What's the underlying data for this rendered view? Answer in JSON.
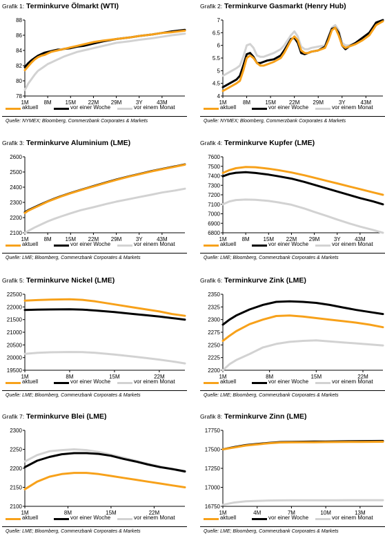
{
  "legend_labels": [
    "aktuell",
    "vor einer Woche",
    "vor einem Monat"
  ],
  "series_colors": {
    "aktuell": "#f7a11a",
    "vor einer Woche": "#000000",
    "vor einem Monat": "#d2d2d2"
  },
  "source_nymex": "Quelle: NYMEX; Bloomberg, Commerzbank Corporates & Markets",
  "source_lme": "Quelle: LME; Bloomberg, Commerzbank Corporates & Markets",
  "charts": [
    {
      "prefix": "Grafik 1:",
      "title": "Terminkurve Ölmarkt (WTI)",
      "chart_data": {
        "type": "line",
        "x": [
          1,
          2,
          3,
          4,
          5,
          6,
          7,
          8,
          9,
          10,
          11,
          12,
          13,
          15,
          17,
          19,
          21,
          22,
          25,
          29,
          33,
          36,
          40,
          43,
          46,
          50
        ],
        "xticks": [
          1,
          8,
          15,
          22,
          29,
          36,
          43
        ],
        "xticklabels": [
          "1M",
          "8M",
          "15M",
          "22M",
          "29M",
          "3Y",
          "43M"
        ],
        "xlim": [
          1,
          50
        ],
        "ylim": [
          78,
          88
        ],
        "yticks": [
          78,
          80,
          82,
          84,
          86,
          88
        ],
        "series": [
          {
            "name": "aktuell",
            "values": [
              81.4,
              81.9,
              82.4,
              82.8,
              83.1,
              83.3,
              83.4,
              83.6,
              83.8,
              83.9,
              84.0,
              84.1,
              84.2,
              84.4,
              84.6,
              84.8,
              85.0,
              85.1,
              85.3,
              85.5,
              85.7,
              85.9,
              86.1,
              86.3,
              86.4,
              86.6
            ]
          },
          {
            "name": "vor einer Woche",
            "values": [
              81.8,
              82.3,
              82.7,
              83.0,
              83.3,
              83.5,
              83.7,
              83.8,
              83.9,
              84.0,
              84.1,
              84.1,
              84.2,
              84.3,
              84.5,
              84.6,
              84.8,
              84.9,
              85.2,
              85.5,
              85.7,
              85.9,
              86.1,
              86.3,
              86.5,
              86.7
            ]
          },
          {
            "name": "vor einem Monat",
            "values": [
              78.8,
              79.6,
              80.2,
              80.8,
              81.3,
              81.6,
              81.9,
              82.2,
              82.4,
              82.6,
              82.8,
              83.0,
              83.2,
              83.5,
              83.8,
              84.0,
              84.2,
              84.3,
              84.6,
              85.0,
              85.2,
              85.4,
              85.6,
              85.8,
              86.0,
              86.2
            ]
          }
        ]
      }
    },
    {
      "prefix": "Grafik 2:",
      "title": "Terminkurve Gasmarkt (Henry Hub)",
      "chart_data": {
        "type": "line",
        "x": [
          1,
          3,
          5,
          6,
          7,
          8,
          9,
          10,
          11,
          12,
          13,
          14,
          16,
          18,
          19,
          21,
          22,
          23,
          24,
          25,
          26,
          27,
          29,
          31,
          32,
          33,
          34,
          35,
          36,
          37,
          38,
          40,
          42,
          44,
          46,
          48
        ],
        "xticks": [
          1,
          8,
          15,
          22,
          29,
          36,
          43
        ],
        "xticklabels": [
          "1M",
          "8M",
          "15M",
          "22M",
          "29M",
          "3Y",
          "43M"
        ],
        "xlim": [
          1,
          48
        ],
        "ylim": [
          4.0,
          7.0
        ],
        "yticks": [
          4.0,
          4.5,
          5.0,
          5.5,
          6.0,
          6.5,
          7.0
        ],
        "series": [
          {
            "name": "aktuell",
            "values": [
              4.2,
              4.35,
              4.5,
              4.6,
              5.0,
              5.5,
              5.6,
              5.5,
              5.3,
              5.2,
              5.2,
              5.25,
              5.35,
              5.5,
              5.7,
              6.2,
              6.35,
              6.2,
              5.8,
              5.7,
              5.7,
              5.75,
              5.8,
              5.9,
              6.2,
              6.6,
              6.7,
              6.4,
              6.0,
              5.9,
              5.95,
              6.05,
              6.2,
              6.4,
              6.8,
              6.95
            ]
          },
          {
            "name": "vor einer Woche",
            "values": [
              4.35,
              4.5,
              4.65,
              4.8,
              5.2,
              5.65,
              5.7,
              5.55,
              5.3,
              5.3,
              5.35,
              5.4,
              5.45,
              5.6,
              5.8,
              6.25,
              6.3,
              6.1,
              5.7,
              5.65,
              5.7,
              5.75,
              5.8,
              5.95,
              6.3,
              6.65,
              6.7,
              6.5,
              6.0,
              5.85,
              5.95,
              6.1,
              6.3,
              6.5,
              6.9,
              7.0
            ]
          },
          {
            "name": "vor einem Monat",
            "values": [
              4.8,
              4.95,
              5.1,
              5.2,
              5.55,
              6.0,
              6.05,
              5.9,
              5.6,
              5.55,
              5.55,
              5.6,
              5.7,
              5.85,
              6.0,
              6.4,
              6.55,
              6.35,
              5.95,
              5.85,
              5.85,
              5.9,
              5.95,
              6.0,
              6.35,
              6.7,
              6.8,
              6.6,
              6.1,
              6.0,
              6.0,
              6.1,
              6.25,
              6.5,
              6.85,
              6.95
            ]
          }
        ]
      }
    },
    {
      "prefix": "Grafik 3:",
      "title": "Terminkurve Aluminium (LME)",
      "chart_data": {
        "type": "line",
        "x": [
          1,
          2,
          4,
          6,
          8,
          10,
          12,
          15,
          18,
          22,
          26,
          29,
          33,
          36,
          40,
          43,
          47,
          50
        ],
        "xticks": [
          1,
          8,
          15,
          22,
          29,
          36,
          43
        ],
        "xticklabels": [
          "1M",
          "8M",
          "15M",
          "22M",
          "29M",
          "3Y",
          "43M"
        ],
        "xlim": [
          1,
          50
        ],
        "ylim": [
          2100,
          2600
        ],
        "yticks": [
          2100,
          2200,
          2300,
          2400,
          2500,
          2600
        ],
        "series": [
          {
            "name": "aktuell",
            "values": [
              2230,
              2245,
              2265,
              2285,
              2305,
              2322,
              2338,
              2360,
              2380,
              2405,
              2430,
              2448,
              2470,
              2485,
              2505,
              2518,
              2535,
              2548
            ]
          },
          {
            "name": "vor einer Woche",
            "values": [
              2235,
              2248,
              2268,
              2288,
              2307,
              2324,
              2340,
              2362,
              2382,
              2407,
              2432,
              2450,
              2472,
              2487,
              2507,
              2520,
              2537,
              2550
            ]
          },
          {
            "name": "vor einem Monat",
            "values": [
              2100,
              2112,
              2135,
              2155,
              2175,
              2192,
              2207,
              2228,
              2248,
              2268,
              2290,
              2305,
              2322,
              2335,
              2352,
              2365,
              2378,
              2390
            ]
          }
        ]
      }
    },
    {
      "prefix": "Grafik 4:",
      "title": "Terminkurve Kupfer (LME)",
      "chart_data": {
        "type": "line",
        "x": [
          1,
          3,
          5,
          8,
          11,
          15,
          18,
          22,
          26,
          29,
          33,
          36,
          40,
          43,
          47,
          50
        ],
        "xticks": [
          1,
          8,
          15,
          22,
          29,
          36,
          43
        ],
        "xticklabels": [
          "1M",
          "8M",
          "15M",
          "22M",
          "29M",
          "3Y",
          "43M"
        ],
        "xlim": [
          1,
          50
        ],
        "ylim": [
          6800,
          7600
        ],
        "yticks": [
          6800,
          6900,
          7000,
          7100,
          7200,
          7300,
          7400,
          7500,
          7600
        ],
        "series": [
          {
            "name": "aktuell",
            "values": [
              7430,
              7460,
              7480,
              7492,
              7490,
              7475,
              7460,
              7435,
              7405,
              7380,
              7345,
              7320,
              7285,
              7260,
              7225,
              7200
            ]
          },
          {
            "name": "vor einer Woche",
            "values": [
              7395,
              7420,
              7432,
              7438,
              7430,
              7412,
              7395,
              7370,
              7335,
              7305,
              7265,
              7235,
              7195,
              7165,
              7130,
              7100
            ]
          },
          {
            "name": "vor einem Monat",
            "values": [
              7100,
              7130,
              7145,
              7150,
              7148,
              7135,
              7120,
              7095,
              7055,
              7020,
              6975,
              6940,
              6895,
              6865,
              6830,
              6800
            ]
          }
        ]
      }
    },
    {
      "prefix": "Grafik 5:",
      "title": "Terminkurve Nickel (LME)",
      "chart_data": {
        "type": "line",
        "x": [
          1,
          3,
          5,
          8,
          10,
          12,
          15,
          18,
          20,
          22,
          24,
          26
        ],
        "xticks": [
          1,
          8,
          15,
          22
        ],
        "xticklabels": [
          "1M",
          "8M",
          "15M",
          "22M"
        ],
        "xlim": [
          1,
          26
        ],
        "ylim": [
          19500,
          22500
        ],
        "yticks": [
          19500,
          20000,
          20500,
          21000,
          21500,
          22000,
          22500
        ],
        "series": [
          {
            "name": "aktuell",
            "values": [
              22250,
              22270,
              22290,
              22300,
              22280,
              22220,
              22100,
              21980,
              21900,
              21820,
              21720,
              21650
            ]
          },
          {
            "name": "vor einer Woche",
            "values": [
              21880,
              21895,
              21900,
              21905,
              21895,
              21860,
              21800,
              21720,
              21670,
              21620,
              21560,
              21500
            ]
          },
          {
            "name": "vor einem Monat",
            "values": [
              20150,
              20190,
              20210,
              20220,
              20215,
              20190,
              20120,
              20040,
              19980,
              19920,
              19850,
              19770
            ]
          }
        ]
      }
    },
    {
      "prefix": "Grafik 6:",
      "title": "Terminkurve Zink (LME)",
      "chart_data": {
        "type": "line",
        "x": [
          1,
          2,
          3,
          5,
          7,
          9,
          11,
          13,
          15,
          17,
          19,
          21,
          23,
          25
        ],
        "xticks": [
          1,
          8,
          15,
          22
        ],
        "xticklabels": [
          "1M",
          "8M",
          "15M",
          "22M"
        ],
        "xlim": [
          1,
          25
        ],
        "ylim": [
          2200,
          2350
        ],
        "yticks": [
          2200,
          2225,
          2250,
          2275,
          2300,
          2325,
          2350
        ],
        "series": [
          {
            "name": "aktuell",
            "values": [
              2258,
              2268,
              2277,
              2291,
              2300,
              2307,
              2308,
              2306,
              2303,
              2300,
              2297,
              2294,
              2290,
              2285
            ]
          },
          {
            "name": "vor einer Woche",
            "values": [
              2290,
              2300,
              2308,
              2320,
              2329,
              2335,
              2336,
              2335,
              2333,
              2329,
              2324,
              2319,
              2315,
              2311
            ]
          },
          {
            "name": "vor einem Monat",
            "values": [
              2200,
              2212,
              2220,
              2232,
              2245,
              2252,
              2256,
              2258,
              2259,
              2257,
              2255,
              2253,
              2251,
              2249
            ]
          }
        ]
      }
    },
    {
      "prefix": "Grafik 7:",
      "title": "Terminkurve Blei (LME)",
      "chart_data": {
        "type": "line",
        "x": [
          1,
          3,
          5,
          7,
          9,
          11,
          13,
          15,
          17,
          19,
          21,
          23,
          25,
          27
        ],
        "xticks": [
          1,
          8,
          15,
          22
        ],
        "xticklabels": [
          "1M",
          "8M",
          "15M",
          "22M"
        ],
        "xlim": [
          1,
          27
        ],
        "ylim": [
          2100,
          2300
        ],
        "yticks": [
          2100,
          2150,
          2200,
          2250,
          2300
        ],
        "series": [
          {
            "name": "aktuell",
            "values": [
              2145,
              2165,
              2178,
              2185,
              2188,
              2188,
              2185,
              2180,
              2175,
              2170,
              2165,
              2160,
              2155,
              2150
            ]
          },
          {
            "name": "vor einer Woche",
            "values": [
              2203,
              2220,
              2230,
              2237,
              2240,
              2240,
              2238,
              2233,
              2225,
              2218,
              2210,
              2203,
              2198,
              2192
            ]
          },
          {
            "name": "vor einem Monat",
            "values": [
              2218,
              2235,
              2245,
              2248,
              2250,
              2248,
              2243,
              2236,
              2228,
              2220,
              2212,
              2205,
              2198,
              2190
            ]
          }
        ]
      }
    },
    {
      "prefix": "Grafik 8:",
      "title": "Terminkurve Zinn (LME)",
      "chart_data": {
        "type": "line",
        "x": [
          1,
          2,
          3,
          4,
          5,
          6,
          7,
          8,
          9,
          10,
          11,
          12,
          13,
          14,
          15
        ],
        "xticks": [
          1,
          4,
          7,
          10,
          13
        ],
        "xticklabels": [
          "1M",
          "4M",
          "7M",
          "10M",
          "13M"
        ],
        "xlim": [
          1,
          15
        ],
        "ylim": [
          16750,
          17750
        ],
        "yticks": [
          16750,
          17000,
          17250,
          17500,
          17750
        ],
        "series": [
          {
            "name": "aktuell",
            "values": [
              17500,
              17525,
              17550,
              17565,
              17580,
              17590,
              17592,
              17593,
              17594,
              17595,
              17596,
              17597,
              17598,
              17599,
              17600
            ]
          },
          {
            "name": "vor einer Woche",
            "values": [
              17500,
              17530,
              17555,
              17570,
              17585,
              17595,
              17598,
              17600,
              17602,
              17603,
              17605,
              17606,
              17608,
              17609,
              17610
            ]
          },
          {
            "name": "vor einem Monat",
            "values": [
              16770,
              16800,
              16815,
              16822,
              16826,
              16828,
              16829,
              16830,
              16830,
              16830,
              16830,
              16831,
              16831,
              16831,
              16831
            ]
          }
        ]
      }
    }
  ]
}
